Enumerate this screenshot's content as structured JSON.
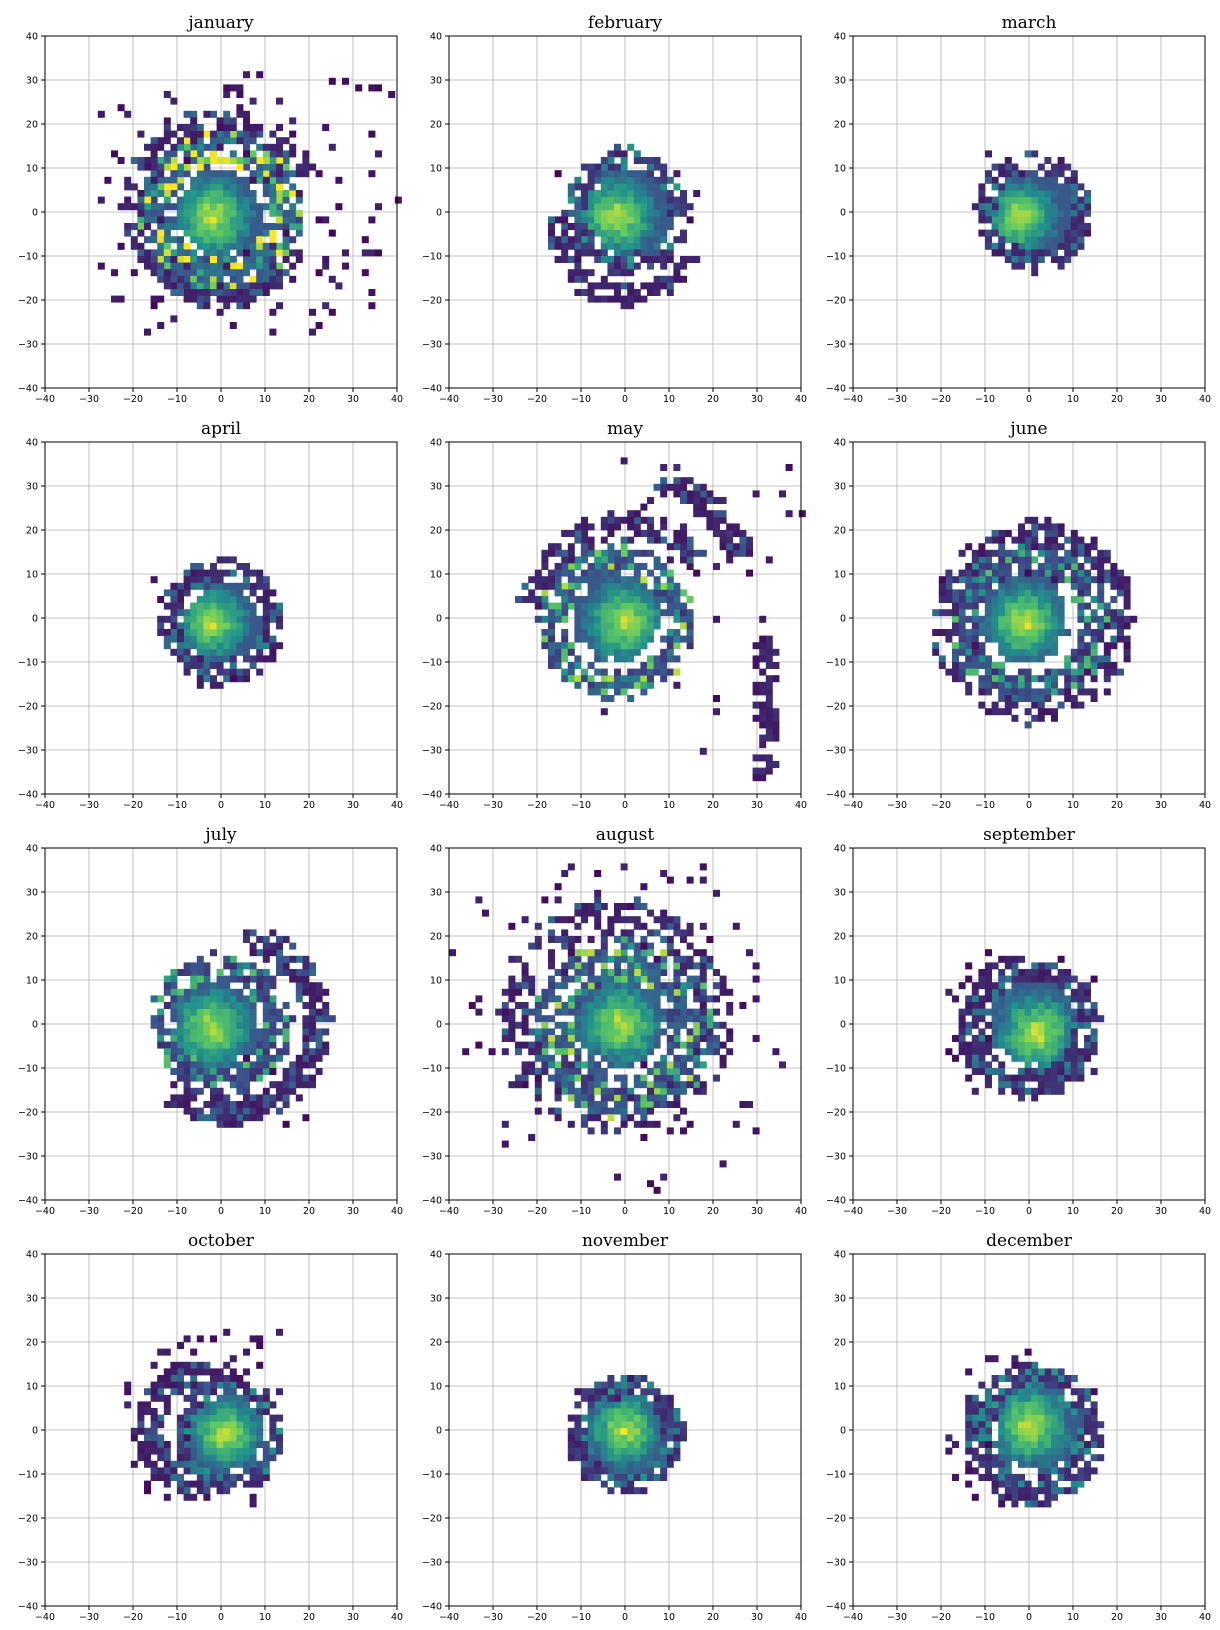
{
  "figure": {
    "grid": true,
    "colormap": [
      "#440154",
      "#3b528b",
      "#21918c",
      "#5ec962",
      "#fde725"
    ]
  },
  "chart_data": [
    {
      "type": "heatmap",
      "title": "january",
      "xlim": [
        -40,
        40
      ],
      "ylim": [
        -40,
        40
      ],
      "ticks": [
        -40,
        -30,
        -20,
        -10,
        0,
        10,
        20,
        30,
        40
      ],
      "core": {
        "center": [
          0,
          0
        ],
        "radius": 10,
        "peak": [
          -2,
          -1
        ]
      },
      "features": [
        {
          "kind": "ring",
          "center": [
            0,
            0
          ],
          "radius": 15,
          "width": 7,
          "from": 0,
          "to": 360,
          "density": 0.55,
          "level": 0.3
        },
        {
          "kind": "ring",
          "center": [
            0,
            2
          ],
          "radius": 19,
          "width": 7,
          "from": 20,
          "to": 330,
          "density": 0.3,
          "level": 0.1
        },
        {
          "kind": "arc",
          "center": [
            0,
            -4
          ],
          "radius": 16,
          "width": 4,
          "from": 200,
          "to": 330,
          "density": 0.55,
          "level": 0.1
        },
        {
          "kind": "scatter",
          "center": [
            6,
            4
          ],
          "spread": 24,
          "count": 140,
          "xrange": [
            -30,
            40
          ],
          "yrange": [
            -28,
            31
          ]
        }
      ]
    },
    {
      "type": "heatmap",
      "title": "february",
      "xlim": [
        -40,
        40
      ],
      "ylim": [
        -40,
        40
      ],
      "ticks": [
        -40,
        -30,
        -20,
        -10,
        0,
        10,
        20,
        30,
        40
      ],
      "core": {
        "center": [
          1,
          0
        ],
        "radius": 10,
        "peak": [
          -2,
          -1
        ]
      },
      "features": [
        {
          "kind": "ring",
          "center": [
            0,
            0
          ],
          "radius": 12,
          "width": 4,
          "from": 0,
          "to": 360,
          "density": 0.45,
          "level": 0.15
        },
        {
          "kind": "arc",
          "center": [
            0,
            -4
          ],
          "radius": 15,
          "width": 4,
          "from": 170,
          "to": 340,
          "density": 0.55,
          "level": 0.1
        },
        {
          "kind": "scatter",
          "center": [
            -4,
            4
          ],
          "spread": 8,
          "count": 25,
          "xrange": [
            -20,
            16
          ],
          "yrange": [
            -20,
            16
          ]
        }
      ]
    },
    {
      "type": "heatmap",
      "title": "march",
      "xlim": [
        -40,
        40
      ],
      "ylim": [
        -40,
        40
      ],
      "ticks": [
        -40,
        -30,
        -20,
        -10,
        0,
        10,
        20,
        30,
        40
      ],
      "core": {
        "center": [
          1,
          0
        ],
        "radius": 9,
        "peak": [
          -2,
          -1
        ]
      },
      "features": [
        {
          "kind": "ring",
          "center": [
            1,
            0
          ],
          "radius": 11,
          "width": 4,
          "from": 0,
          "to": 360,
          "density": 0.55,
          "level": 0.12
        },
        {
          "kind": "scatter",
          "center": [
            0,
            0
          ],
          "spread": 10,
          "count": 20,
          "xrange": [
            -18,
            15
          ],
          "yrange": [
            -11,
            14
          ]
        }
      ]
    },
    {
      "type": "heatmap",
      "title": "april",
      "xlim": [
        -40,
        40
      ],
      "ylim": [
        -40,
        40
      ],
      "ticks": [
        -40,
        -30,
        -20,
        -10,
        0,
        10,
        20,
        30,
        40
      ],
      "core": {
        "center": [
          0,
          -1
        ],
        "radius": 9,
        "peak": [
          -2,
          -1
        ]
      },
      "features": [
        {
          "kind": "ring",
          "center": [
            0,
            -1
          ],
          "radius": 12,
          "width": 4,
          "from": 0,
          "to": 360,
          "density": 0.55,
          "level": 0.12
        },
        {
          "kind": "scatter",
          "center": [
            0,
            -2
          ],
          "spread": 8,
          "count": 15,
          "xrange": [
            -16,
            12
          ],
          "yrange": [
            -17,
            13
          ]
        }
      ]
    },
    {
      "type": "heatmap",
      "title": "may",
      "xlim": [
        -40,
        40
      ],
      "ylim": [
        -40,
        40
      ],
      "ticks": [
        -40,
        -30,
        -20,
        -10,
        0,
        10,
        20,
        30,
        40
      ],
      "core": {
        "center": [
          -2,
          0
        ],
        "radius": 10,
        "peak": [
          0,
          -1
        ]
      },
      "features": [
        {
          "kind": "ring",
          "center": [
            -2,
            -1
          ],
          "radius": 15,
          "width": 6,
          "from": 0,
          "to": 360,
          "density": 0.55,
          "level": 0.25
        },
        {
          "kind": "ring",
          "center": [
            0,
            -1
          ],
          "radius": 22,
          "width": 5,
          "from": 40,
          "to": 170,
          "density": 0.4,
          "level": 0.1
        },
        {
          "kind": "arc",
          "center": [
            0,
            5
          ],
          "radius": 28,
          "width": 5,
          "from": 20,
          "to": 75,
          "density": 0.5,
          "level": 0.1
        },
        {
          "kind": "line",
          "from": [
            32,
            -4
          ],
          "to": [
            32,
            -36
          ],
          "width": 4,
          "count": 90,
          "level": 0.1
        },
        {
          "kind": "scatter",
          "center": [
            20,
            10
          ],
          "spread": 18,
          "count": 60,
          "xrange": [
            -22,
            40
          ],
          "yrange": [
            -36,
            40
          ]
        }
      ]
    },
    {
      "type": "heatmap",
      "title": "june",
      "xlim": [
        -40,
        40
      ],
      "ylim": [
        -40,
        40
      ],
      "ticks": [
        -40,
        -30,
        -20,
        -10,
        0,
        10,
        20,
        30,
        40
      ],
      "core": {
        "center": [
          -1,
          0
        ],
        "radius": 10,
        "peak": [
          -1,
          -1
        ]
      },
      "features": [
        {
          "kind": "ring",
          "center": [
            0,
            -1
          ],
          "radius": 15,
          "width": 5,
          "from": 0,
          "to": 360,
          "density": 0.6,
          "level": 0.2
        },
        {
          "kind": "ring",
          "center": [
            1,
            -1
          ],
          "radius": 20,
          "width": 5,
          "from": 0,
          "to": 360,
          "density": 0.35,
          "level": 0.1
        },
        {
          "kind": "scatter",
          "center": [
            0,
            0
          ],
          "spread": 14,
          "count": 30,
          "xrange": [
            -21,
            24
          ],
          "yrange": [
            -19,
            19
          ]
        }
      ]
    },
    {
      "type": "heatmap",
      "title": "july",
      "xlim": [
        -40,
        40
      ],
      "ylim": [
        -40,
        40
      ],
      "ticks": [
        -40,
        -30,
        -20,
        -10,
        0,
        10,
        20,
        30,
        40
      ],
      "core": {
        "center": [
          -1,
          0
        ],
        "radius": 10,
        "peak": [
          -2,
          -1
        ]
      },
      "features": [
        {
          "kind": "ring",
          "center": [
            0,
            0
          ],
          "radius": 13,
          "width": 5,
          "from": 0,
          "to": 360,
          "density": 0.55,
          "level": 0.2
        },
        {
          "kind": "arc",
          "center": [
            2,
            0
          ],
          "radius": 20,
          "width": 5,
          "from": -100,
          "to": 80,
          "density": 0.55,
          "level": 0.1
        },
        {
          "kind": "arc",
          "center": [
            2,
            -2
          ],
          "radius": 19,
          "width": 4,
          "from": 230,
          "to": 290,
          "density": 0.5,
          "level": 0.1
        },
        {
          "kind": "scatter",
          "center": [
            6,
            -6
          ],
          "spread": 12,
          "count": 40,
          "xrange": [
            -15,
            26
          ],
          "yrange": [
            -23,
            19
          ]
        }
      ]
    },
    {
      "type": "heatmap",
      "title": "august",
      "xlim": [
        -40,
        40
      ],
      "ylim": [
        -40,
        40
      ],
      "ticks": [
        -40,
        -30,
        -20,
        -10,
        0,
        10,
        20,
        30,
        40
      ],
      "core": {
        "center": [
          -1,
          0
        ],
        "radius": 10,
        "peak": [
          -1,
          0
        ]
      },
      "features": [
        {
          "kind": "ring",
          "center": [
            0,
            -1
          ],
          "radius": 16,
          "width": 9,
          "from": 0,
          "to": 360,
          "density": 0.5,
          "level": 0.25
        },
        {
          "kind": "ring",
          "center": [
            -2,
            2
          ],
          "radius": 23,
          "width": 8,
          "from": 0,
          "to": 360,
          "density": 0.25,
          "level": 0.1
        },
        {
          "kind": "scatter",
          "center": [
            -2,
            0
          ],
          "spread": 26,
          "count": 130,
          "xrange": [
            -40,
            40
          ],
          "yrange": [
            -38,
            40
          ]
        }
      ]
    },
    {
      "type": "heatmap",
      "title": "september",
      "xlim": [
        -40,
        40
      ],
      "ylim": [
        -40,
        40
      ],
      "ticks": [
        -40,
        -30,
        -20,
        -10,
        0,
        10,
        20,
        30,
        40
      ],
      "core": {
        "center": [
          1,
          0
        ],
        "radius": 10,
        "peak": [
          2,
          -2
        ]
      },
      "features": [
        {
          "kind": "ring",
          "center": [
            0,
            -1
          ],
          "radius": 13,
          "width": 5,
          "from": 0,
          "to": 360,
          "density": 0.55,
          "level": 0.12
        },
        {
          "kind": "scatter",
          "center": [
            0,
            0
          ],
          "spread": 12,
          "count": 60,
          "xrange": [
            -19,
            18
          ],
          "yrange": [
            -16,
            20
          ]
        }
      ]
    },
    {
      "type": "heatmap",
      "title": "october",
      "xlim": [
        -40,
        40
      ],
      "ylim": [
        -40,
        40
      ],
      "ticks": [
        -40,
        -30,
        -20,
        -10,
        0,
        10,
        20,
        30,
        40
      ],
      "core": {
        "center": [
          1,
          -1
        ],
        "radius": 9,
        "peak": [
          1,
          -1
        ]
      },
      "features": [
        {
          "kind": "ring",
          "center": [
            -4,
            0
          ],
          "radius": 13,
          "width": 6,
          "from": 60,
          "to": 300,
          "density": 0.6,
          "level": 0.1
        },
        {
          "kind": "ring",
          "center": [
            2,
            -1
          ],
          "radius": 11,
          "width": 3,
          "from": 0,
          "to": 360,
          "density": 0.5,
          "level": 0.15
        },
        {
          "kind": "scatter",
          "center": [
            -4,
            2
          ],
          "spread": 14,
          "count": 70,
          "xrange": [
            -22,
            13
          ],
          "yrange": [
            -18,
            24
          ]
        }
      ]
    },
    {
      "type": "heatmap",
      "title": "november",
      "xlim": [
        -40,
        40
      ],
      "ylim": [
        -40,
        40
      ],
      "ticks": [
        -40,
        -30,
        -20,
        -10,
        0,
        10,
        20,
        30,
        40
      ],
      "core": {
        "center": [
          0,
          -1
        ],
        "radius": 9,
        "peak": [
          0,
          0
        ]
      },
      "features": [
        {
          "kind": "ring",
          "center": [
            0,
            -1
          ],
          "radius": 11,
          "width": 4,
          "from": 0,
          "to": 360,
          "density": 0.6,
          "level": 0.15
        },
        {
          "kind": "scatter",
          "center": [
            -1,
            0
          ],
          "spread": 9,
          "count": 25,
          "xrange": [
            -14,
            10
          ],
          "yrange": [
            -15,
            16
          ]
        }
      ]
    },
    {
      "type": "heatmap",
      "title": "december",
      "xlim": [
        -40,
        40
      ],
      "ylim": [
        -40,
        40
      ],
      "ticks": [
        -40,
        -30,
        -20,
        -10,
        0,
        10,
        20,
        30,
        40
      ],
      "core": {
        "center": [
          2,
          0
        ],
        "radius": 10,
        "peak": [
          0,
          1
        ]
      },
      "features": [
        {
          "kind": "ring",
          "center": [
            1,
            -1
          ],
          "radius": 13,
          "width": 5,
          "from": 0,
          "to": 360,
          "density": 0.6,
          "level": 0.15
        },
        {
          "kind": "scatter",
          "center": [
            -1,
            -1
          ],
          "spread": 12,
          "count": 55,
          "xrange": [
            -18,
            15
          ],
          "yrange": [
            -17,
            19
          ]
        }
      ]
    }
  ]
}
